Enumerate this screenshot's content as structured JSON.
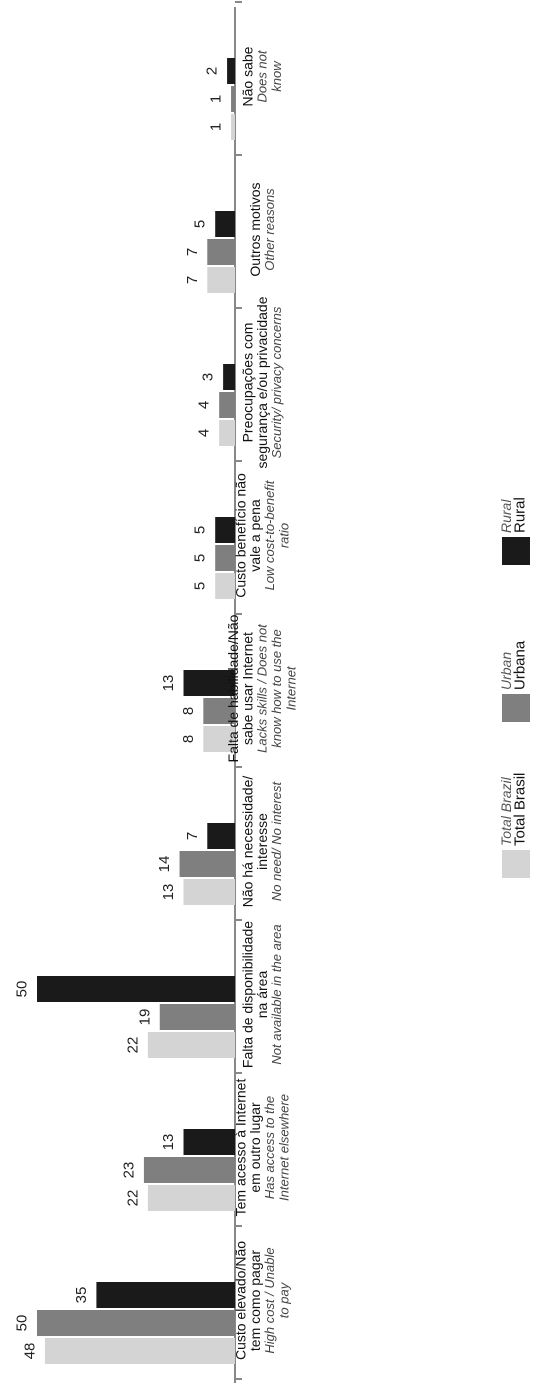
{
  "chart_data": {
    "type": "bar",
    "orientation": "horizontal",
    "rotated": "upside-down",
    "categories": [
      {
        "pt": [
          "Custo elevado/Não",
          "tem como pagar"
        ],
        "en": [
          "High cost / Unable",
          "to pay"
        ]
      },
      {
        "pt": [
          "Tem acesso à Internet",
          "em outro lugar"
        ],
        "en": [
          "Has access to the",
          "Internet elsewhere"
        ]
      },
      {
        "pt": [
          "Falta de disponibilidade",
          "na área"
        ],
        "en": [
          "Not available in the area"
        ]
      },
      {
        "pt": [
          "Não há necessidade/",
          "interesse"
        ],
        "en": [
          "No need/ No interest"
        ]
      },
      {
        "pt": [
          "Falta de habilidade/Não",
          "sabe usar Internet"
        ],
        "en": [
          "Lacks skills / Does not",
          "know how to use the",
          "Internet"
        ]
      },
      {
        "pt": [
          "Custo benefício não",
          "vale a pena"
        ],
        "en": [
          "Low cost-to-benefit",
          "ratio"
        ]
      },
      {
        "pt": [
          "Preocupações com",
          "segurança e/ou privacidade"
        ],
        "en": [
          "Security/ privacy concerns"
        ]
      },
      {
        "pt": [
          "Outros motivos"
        ],
        "en": [
          "Other reasons"
        ]
      },
      {
        "pt": [
          "Não sabe"
        ],
        "en": [
          "Does not",
          "know"
        ]
      }
    ],
    "series": [
      {
        "name": "Total Brasil",
        "name_en": "Total Brazil",
        "color": "#d4d4d4",
        "values": [
          48,
          22,
          22,
          13,
          8,
          5,
          4,
          7,
          1
        ]
      },
      {
        "name": "Urbana",
        "name_en": "Urban",
        "color": "#7f7f7f",
        "values": [
          50,
          23,
          19,
          14,
          8,
          5,
          4,
          7,
          1
        ]
      },
      {
        "name": "Rural",
        "name_en": "Rural",
        "color": "#1a1a1a",
        "values": [
          35,
          13,
          50,
          7,
          13,
          5,
          3,
          5,
          2
        ]
      }
    ],
    "xlim": [
      0,
      50
    ],
    "legend": "bottom",
    "grid": false
  },
  "colors": {
    "axis": "#888888",
    "value_label": "#222222"
  }
}
